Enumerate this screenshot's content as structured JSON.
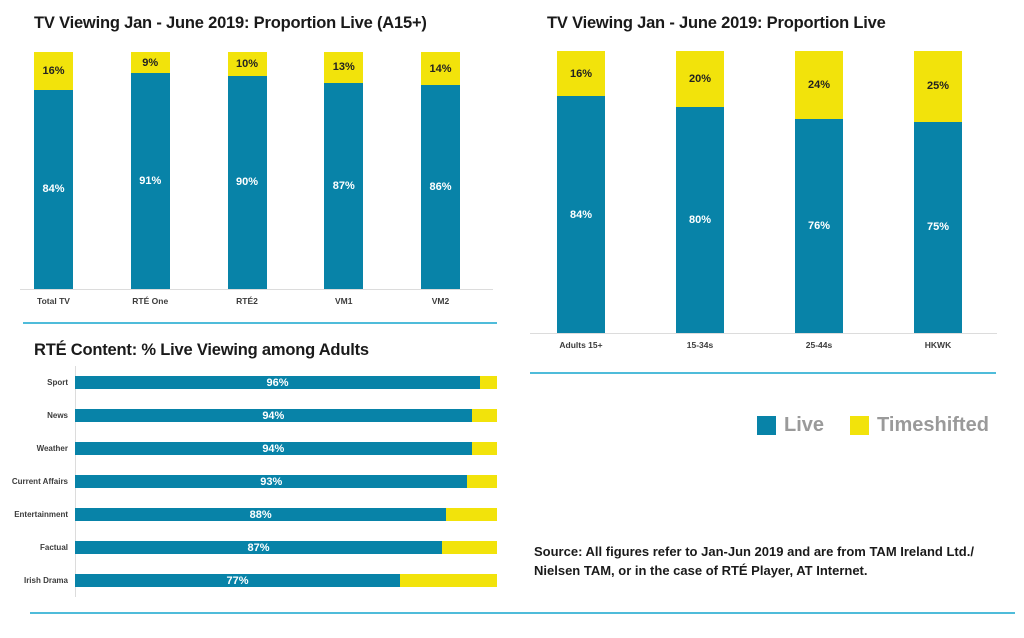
{
  "colors": {
    "live": "#0883A8",
    "timeshifted": "#F2E30B",
    "separator": "#4FBCDA",
    "axis": "#DCDCDC",
    "legend_text": "#9A9A9A",
    "title": "#1A1A1A",
    "category": "#3C3C3C"
  },
  "legend": {
    "items": [
      {
        "label": "Live",
        "color_key": "live"
      },
      {
        "label": "Timeshifted",
        "color_key": "timeshifted"
      }
    ]
  },
  "source": {
    "line1": "Source: All figures refer to Jan-Jun 2019 and are from TAM Ireland Ltd./",
    "line2": "Nielsen TAM, or in the case of RTÉ Player, AT Internet."
  },
  "chart_data": [
    {
      "id": "live-by-channel",
      "type": "bar",
      "stacked": true,
      "orientation": "vertical",
      "title": "TV Viewing Jan - June 2019: Proportion Live (A15+)",
      "categories": [
        "Total TV",
        "RTÉ One",
        "RTÉ2",
        "VM1",
        "VM2"
      ],
      "series": [
        {
          "name": "Live",
          "values": [
            84,
            91,
            90,
            87,
            86
          ]
        },
        {
          "name": "Timeshifted",
          "values": [
            16,
            9,
            10,
            13,
            14
          ]
        }
      ],
      "value_unit": "%",
      "ylim": [
        0,
        100
      ],
      "grid": false,
      "legend_position": "shared-bottom-right"
    },
    {
      "id": "live-by-demographic",
      "type": "bar",
      "stacked": true,
      "orientation": "vertical",
      "title": "TV Viewing Jan - June 2019: Proportion Live",
      "categories": [
        "Adults 15+",
        "15-34s",
        "25-44s",
        "HKWK"
      ],
      "series": [
        {
          "name": "Live",
          "values": [
            84,
            80,
            76,
            75
          ]
        },
        {
          "name": "Timeshifted",
          "values": [
            16,
            20,
            24,
            25
          ]
        }
      ],
      "value_unit": "%",
      "ylim": [
        0,
        100
      ],
      "grid": false,
      "legend_position": "shared-bottom-right"
    },
    {
      "id": "rte-content-live-viewing",
      "type": "bar",
      "stacked": true,
      "orientation": "horizontal",
      "title": "RTÉ Content: % Live Viewing among Adults",
      "categories": [
        "Sport",
        "News",
        "Weather",
        "Current Affairs",
        "Entertainment",
        "Factual",
        "Irish Drama"
      ],
      "series": [
        {
          "name": "Live",
          "values": [
            96,
            94,
            94,
            93,
            88,
            87,
            77
          ]
        },
        {
          "name": "Timeshifted",
          "values": [
            4,
            6,
            6,
            7,
            12,
            13,
            23
          ]
        }
      ],
      "value_unit": "%",
      "xlim": [
        0,
        100
      ],
      "grid": false,
      "labels_shown": "live-only",
      "legend_position": "shared-bottom-right"
    }
  ]
}
